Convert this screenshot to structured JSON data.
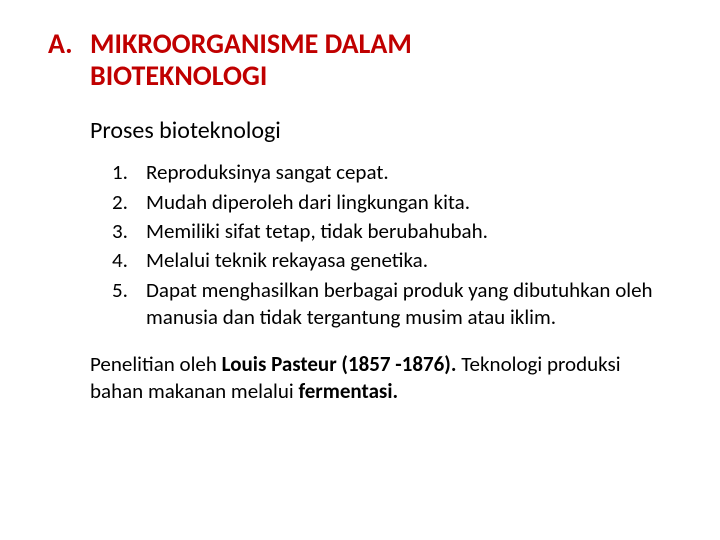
{
  "heading": {
    "letter": "A.",
    "title_line1": "MIKROORGANISME DALAM",
    "title_line2": "BIOTEKNOLOGI"
  },
  "subheading": "Proses bioteknologi",
  "list": {
    "items": [
      {
        "num": "1.",
        "text": "Reproduksinya sangat cepat."
      },
      {
        "num": "2.",
        "text": "Mudah diperoleh dari lingkungan kita."
      },
      {
        "num": "3.",
        "text": "Memiliki sifat tetap, tidak berubahubah."
      },
      {
        "num": "4.",
        "text": "Melalui teknik rekayasa genetika."
      },
      {
        "num": "5.",
        "text": "Dapat menghasilkan berbagai produk yang dibutuhkan oleh manusia dan tidak tergantung musim atau iklim."
      }
    ]
  },
  "footer": {
    "pre": "Penelitian oleh ",
    "bold1": "Louis Pasteur (1857 -1876). ",
    "mid": "Teknologi produksi bahan makanan melalui ",
    "bold2": "fermentasi."
  },
  "colors": {
    "heading": "#c00000",
    "text": "#000000",
    "background": "#ffffff"
  }
}
